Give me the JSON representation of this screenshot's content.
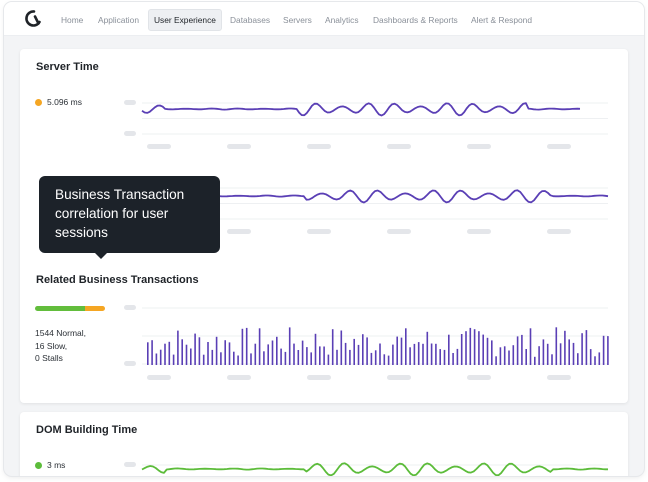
{
  "colors": {
    "accent": "#5a3fb5",
    "normal": "#62bd3c",
    "slow": "#f5a623",
    "green_line": "#5cbc3a"
  },
  "nav": {
    "items": [
      {
        "label": "Home",
        "active": false
      },
      {
        "label": "Application",
        "active": false
      },
      {
        "label": "User Experience",
        "active": true
      },
      {
        "label": "Databases",
        "active": false
      },
      {
        "label": "Servers",
        "active": false
      },
      {
        "label": "Analytics",
        "active": false
      },
      {
        "label": "Dashboards & Reports",
        "active": false
      },
      {
        "label": "Alert & Respond",
        "active": false
      }
    ]
  },
  "server_time": {
    "title": "Server Time",
    "legend_value": "5.096 ms",
    "legend_color": "#f5a623"
  },
  "tooltip": {
    "lines": [
      "Business Transaction",
      "correlation for user",
      "sessions"
    ]
  },
  "related": {
    "title": "Related Business Transactions",
    "split": {
      "normal": 1544,
      "slow": 16
    },
    "stats": [
      "1544 Normal,",
      "16 Slow,",
      "0 Stalls"
    ]
  },
  "dom_time": {
    "title": "DOM Building Time",
    "legend_value": "3 ms",
    "legend_color": "#5cbc3a"
  }
}
